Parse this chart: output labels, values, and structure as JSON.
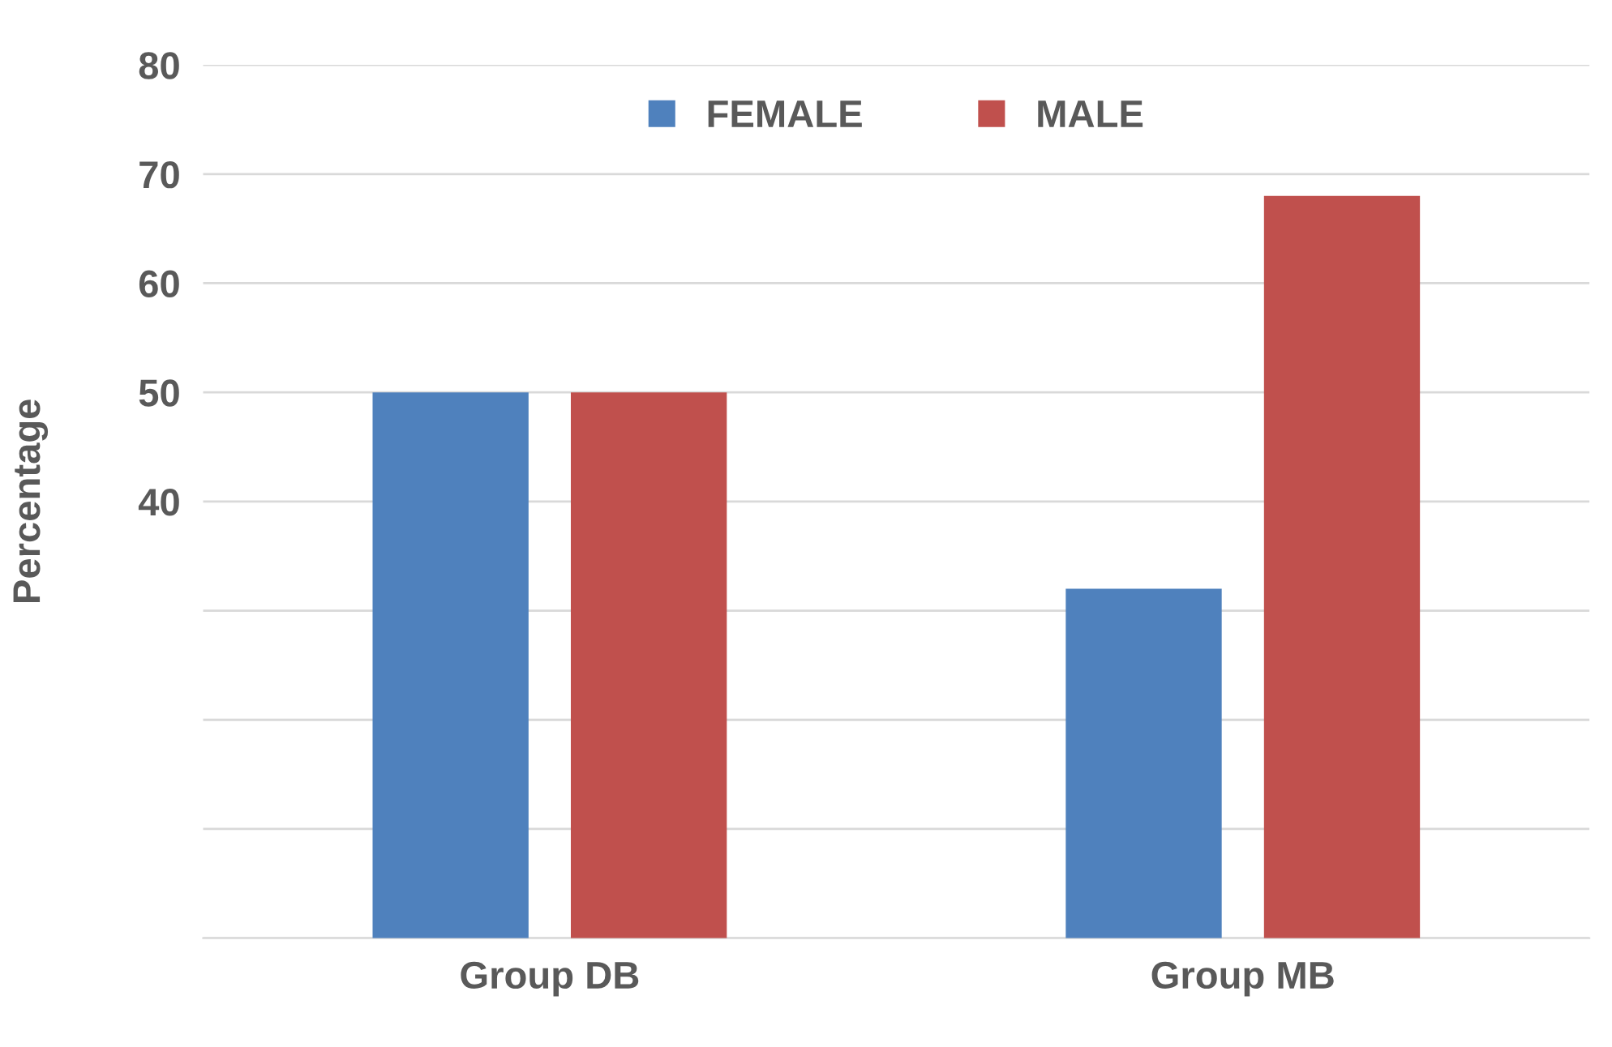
{
  "chart_data": {
    "type": "bar",
    "ylabel": "Percentage",
    "categories": [
      "Group DB",
      "Group MB"
    ],
    "series": [
      {
        "name": "FEMALE",
        "color": "#4f81bd",
        "values": [
          50,
          32
        ]
      },
      {
        "name": "MALE",
        "color": "#c0504d",
        "values": [
          50,
          68
        ]
      }
    ],
    "ylim": [
      0,
      80
    ],
    "yticks": [
      {
        "value": 0,
        "label": null
      },
      {
        "value": 10,
        "label": null
      },
      {
        "value": 20,
        "label": null
      },
      {
        "value": 30,
        "label": null
      },
      40,
      50,
      60,
      70,
      80
    ],
    "grid": "y",
    "legend": "top"
  }
}
